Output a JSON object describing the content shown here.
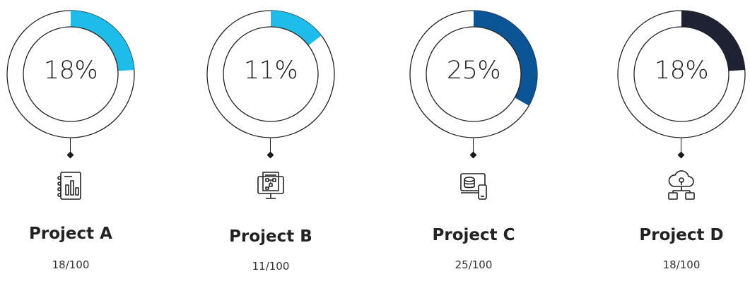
{
  "chart_data": {
    "type": "pie",
    "categories": [
      "Project A",
      "Project B",
      "Project C",
      "Project D"
    ],
    "values": [
      18,
      11,
      25,
      18
    ],
    "max": 100,
    "percent_labels": [
      "18%",
      "11%",
      "25%",
      "18%"
    ],
    "score_labels": [
      "18/100",
      "11/100",
      "25/100",
      "18/100"
    ],
    "colors": [
      "#1ebde9",
      "#1ebde9",
      "#0b5597",
      "#1f2233"
    ],
    "track_color": "#ffffff",
    "outline_color": "#222222"
  },
  "icons": [
    "report-chart-icon",
    "monitor-flowchart-icon",
    "devices-database-icon",
    "cloud-network-icon"
  ]
}
